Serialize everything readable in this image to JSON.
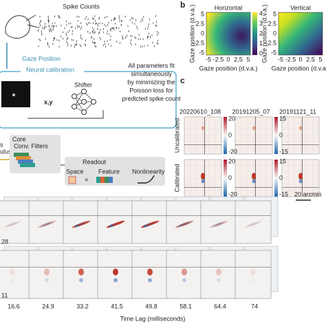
{
  "panel_a": {
    "spike_counts": "Spike Counts",
    "gaze_position": "Gaze Position",
    "neural_calibration": "Neural calibration",
    "shifter": "Shifter",
    "xy": "x,y",
    "stimulus_fragments": [
      "s",
      "ulus"
    ],
    "core": "Core",
    "conv_filters": "Conv. Filters",
    "readout": "Readout",
    "space": "Space",
    "feature": "Feature",
    "nonlinearity": "Nonlinearity",
    "times": "×",
    "fit_note": [
      "All parameters fit",
      "simultaneously",
      "by minimizing the",
      "Poisson loss for",
      "predicted spike count"
    ]
  },
  "panel_b": {
    "label": "b",
    "maps": [
      {
        "title": "Horizontal"
      },
      {
        "title": "Vertical"
      }
    ],
    "colorbar_ticks": [
      4,
      3,
      2,
      1,
      0
    ],
    "x_ticks": [
      -5,
      -2.5,
      0,
      2.5,
      5
    ],
    "y_ticks": [
      5,
      2.5,
      0,
      -2.5,
      -5
    ],
    "x_label": "Gaze position (d.v.a.)",
    "y_label": "Gaze position (d.v.a.)"
  },
  "panel_c": {
    "label": "c",
    "sessions": [
      "20220610_108",
      "20191205_07",
      "20191121_11"
    ],
    "rows": [
      "Uncalibrated",
      "Calibrated"
    ],
    "colorbars": [
      [
        20,
        0,
        -20
      ],
      [
        15,
        0,
        -15
      ]
    ],
    "scale_bar": "20 arcmin"
  },
  "panel_d": {
    "row_labels": [
      "28",
      "11"
    ],
    "time_lags": [
      16.6,
      24.9,
      33.2,
      41.5,
      49.8,
      58.1,
      64.4,
      74
    ],
    "x_label": "Time Lag (milliseconds)"
  }
}
